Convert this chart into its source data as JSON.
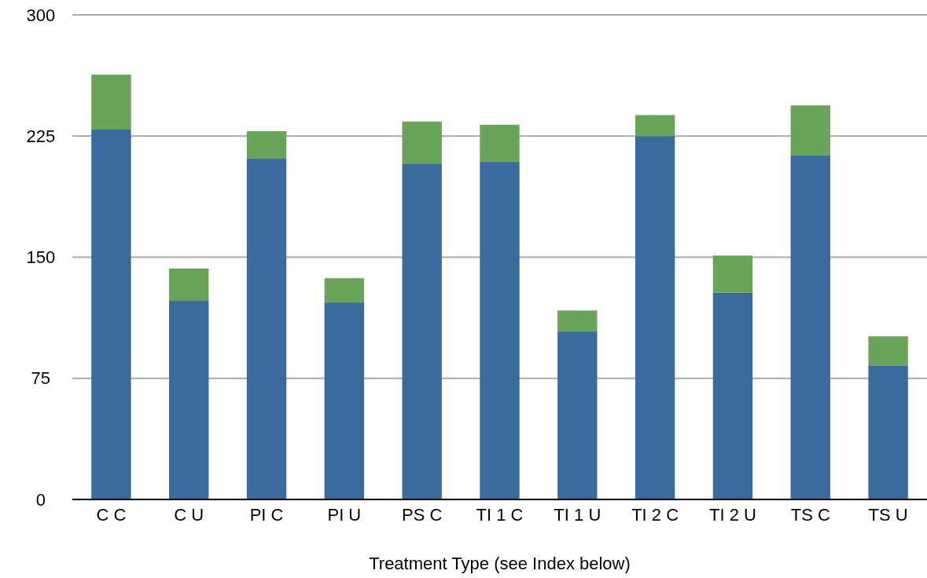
{
  "chart_data": {
    "type": "bar",
    "xlabel": "Treatment Type (see Index below)",
    "categories": [
      "C C",
      "C U",
      "PI C",
      "PI U",
      "PS C",
      "TI 1 C",
      "TI 1 U",
      "TI 2 C",
      "TI 2 U",
      "TS C",
      "TS U"
    ],
    "stacked": true,
    "grid": "y",
    "ylim": [
      0,
      300
    ],
    "yticks": [
      0,
      75,
      150,
      225,
      300
    ],
    "series": [
      {
        "color": "#3b6b9c",
        "values": [
          229,
          123,
          211,
          122,
          208,
          209,
          104,
          225,
          128,
          213,
          83
        ]
      },
      {
        "color": "#6aa35a",
        "values": [
          34,
          20,
          17,
          15,
          26,
          23,
          13,
          13,
          23,
          31,
          18
        ]
      }
    ]
  }
}
